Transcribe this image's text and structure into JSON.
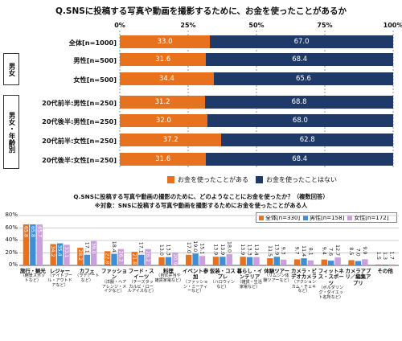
{
  "top": {
    "title": "Q.SNSに投稿する写真や動画を撮影するために、お金を使ったことがあるか",
    "percent_ticks": [
      "0%",
      "25%",
      "50%",
      "75%",
      "100%"
    ],
    "groups": [
      "男女",
      "男女・年齢別"
    ],
    "legend": [
      "お金を使ったことがある",
      "お金を使ったことはない"
    ],
    "colors": {
      "spent": "#e8711e",
      "not_spent": "#1f3a68"
    }
  },
  "bottom": {
    "title": "Q.SNSに投稿する写真や動画の撮影のために、どのようなことにお金を使ったか？（複数回答）",
    "subtitle": "※対象：SNSに投稿する写真や動画を撮影するためにお金を使ったことがある人",
    "legend": [
      "全体[n=330]",
      "男性[n=158]",
      "女性[n=172]"
    ],
    "colors": {
      "all": "#e8711e",
      "male": "#3e8fd6",
      "female": "#c9a0dc"
    },
    "yticks": [
      "0%",
      "20%",
      "40%",
      "60%",
      "80%"
    ]
  },
  "chart_data": [
    {
      "type": "bar",
      "title": "Q.SNSに投稿する写真や動画を撮影するために、お金を使ったことがあるか",
      "orientation": "horizontal-stacked",
      "categories": [
        "全体[n=1000]",
        "男性[n=500]",
        "女性[n=500]",
        "20代前半:男性[n=250]",
        "20代後半:男性[n=250]",
        "20代前半:女性[n=250]",
        "20代後半:女性[n=250]"
      ],
      "series": [
        {
          "name": "お金を使ったことがある",
          "values": [
            33.0,
            31.6,
            34.4,
            31.2,
            32.0,
            37.2,
            31.6
          ]
        },
        {
          "name": "お金を使ったことはない",
          "values": [
            67.0,
            68.4,
            65.6,
            68.8,
            68.0,
            62.8,
            68.4
          ]
        }
      ],
      "xlim": [
        0,
        100
      ],
      "legend_position": "bottom"
    },
    {
      "type": "bar",
      "title": "Q.SNSに投稿する写真や動画の撮影のために、どのようなことにお金を使ったか？（複数回答）",
      "subtitle": "※対象：SNSに投稿する写真や動画を撮影するためにお金を使ったことがある人",
      "categories": [
        {
          "main": "旅行・観光",
          "sub": "（絶景スポットなど）"
        },
        {
          "main": "レジャー",
          "sub": "（ナイトプール・アウトドアなど）"
        },
        {
          "main": "カフェ",
          "sub": "（ラテアートなど）"
        },
        {
          "main": "ファッション",
          "sub": "（洋服・ヘアアレンジ・メイクなど）"
        },
        {
          "main": "フード・スイーツ",
          "sub": "（チーズタッカルビ・ロールアイスなど）"
        },
        {
          "main": "料理",
          "sub": "（自炊弁当や雑貨家電など）"
        },
        {
          "main": "イベント参加",
          "sub": "（ファッション・ミーティーなど）"
        },
        {
          "main": "仮装・コスプレ",
          "sub": "（ハロウィンなど）"
        },
        {
          "main": "暮らし・インテリア",
          "sub": "（雑貨・生活家電など）"
        },
        {
          "main": "体験ツアー",
          "sub": "（リムジン体験ツアーなど）"
        },
        {
          "main": "カメラ・ビデオカメラ",
          "sub": "（アクションカム・チェキなど）"
        },
        {
          "main": "フィットネス・スポーツ",
          "sub": "（ボルダリング・ダイエット名所など）"
        },
        {
          "main": "カメラアプリ／編集アプリ",
          "sub": ""
        },
        {
          "main": "その他",
          "sub": ""
        }
      ],
      "series": [
        {
          "name": "全体[n=330]",
          "values": [
            65.8,
            34.2,
            28.2,
            22.8,
            21.8,
            13.0,
            17.0,
            13.9,
            13.9,
            11.5,
            9.7,
            9.4,
            8.5,
            1.5
          ]
        },
        {
          "name": "男性[n=158]",
          "values": [
            65.8,
            35.4,
            17.1,
            18.4,
            17.1,
            13.3,
            19.0,
            13.9,
            13.3,
            13.9,
            11.4,
            7.6,
            7.0,
            1.3
          ]
        },
        {
          "name": "女性[n=172]",
          "values": [
            65.7,
            33.1,
            39.0,
            26.2,
            26.2,
            20.9,
            15.1,
            18.0,
            13.4,
            9.3,
            8.1,
            12.7,
            9.9,
            1.7
          ]
        }
      ],
      "ylim": [
        0,
        80
      ],
      "grid": true,
      "legend_position": "top-right"
    }
  ]
}
